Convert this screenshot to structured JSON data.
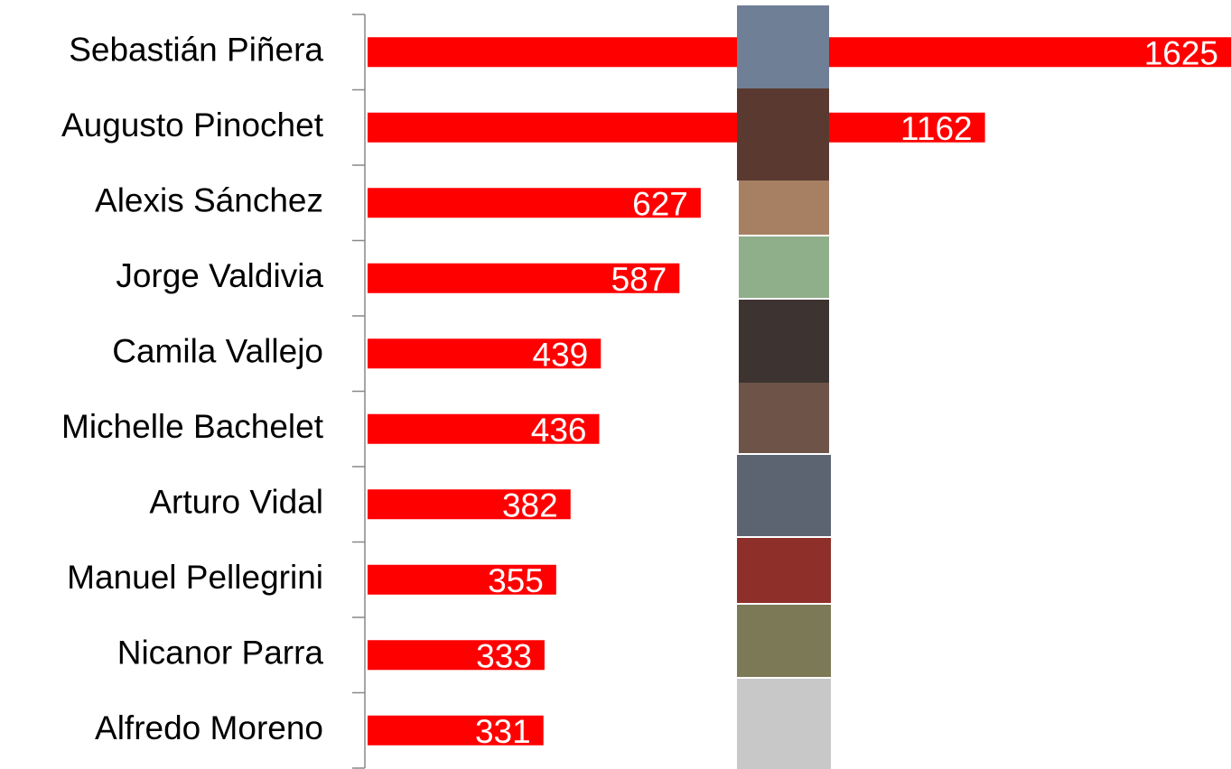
{
  "chart_data": {
    "type": "bar",
    "orientation": "horizontal",
    "categories": [
      "Sebastián Piñera",
      "Augusto Pinochet",
      "Alexis Sánchez",
      "Jorge Valdivia",
      "Camila Vallejo",
      "Michelle Bachelet",
      "Arturo Vidal",
      "Manuel Pellegrini",
      "Nicanor Parra",
      "Alfredo Moreno"
    ],
    "values": [
      1625,
      1162,
      627,
      587,
      439,
      436,
      382,
      355,
      333,
      331
    ],
    "color": "#ff0000"
  }
}
